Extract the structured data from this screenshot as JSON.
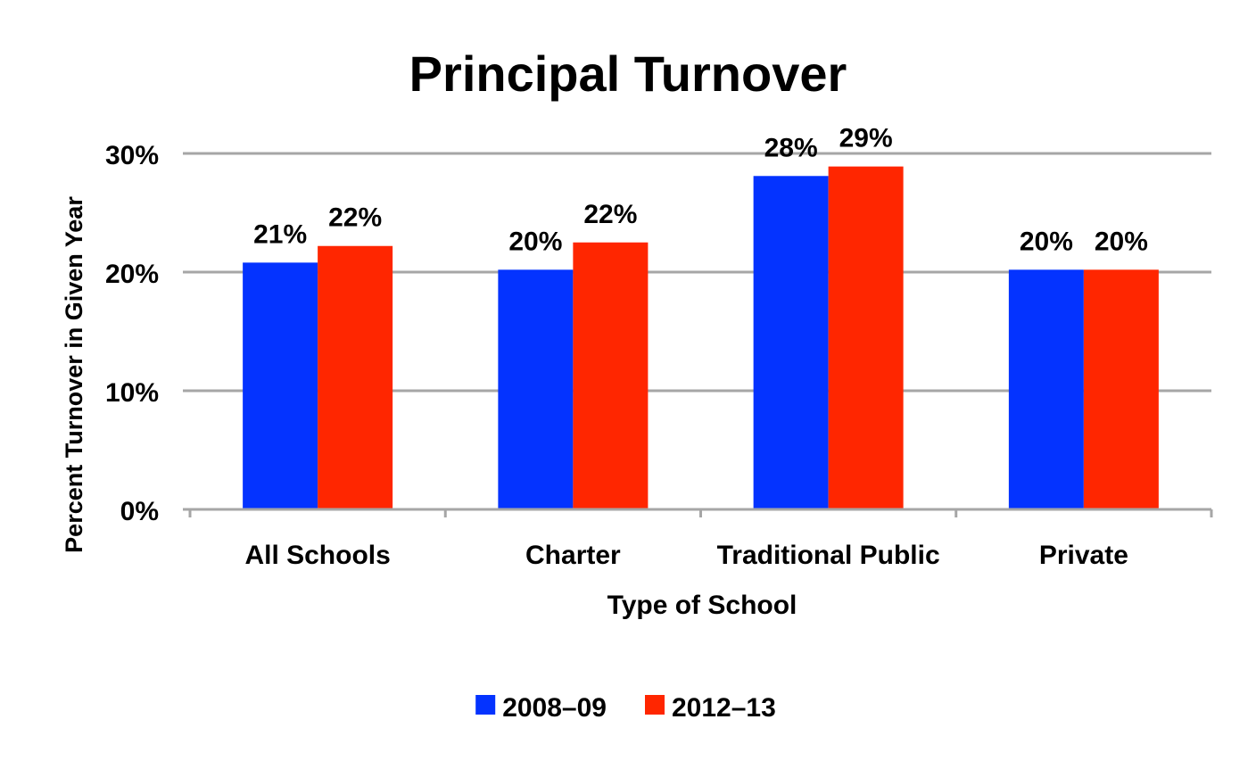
{
  "chart_data": {
    "type": "bar",
    "title": "Principal Turnover",
    "xlabel": "Type of School",
    "ylabel": "Percent Turnover in Given Year",
    "categories": [
      "All Schools",
      "Charter",
      "Traditional Public",
      "Private"
    ],
    "series": [
      {
        "name": "2008–09",
        "color": "#0433FF",
        "values": [
          20.8,
          20.2,
          28.1,
          20.2
        ],
        "labels": [
          "21%",
          "20%",
          "28%",
          "20%"
        ]
      },
      {
        "name": "2012–13",
        "color": "#FF2600",
        "values": [
          22.2,
          22.5,
          28.9,
          20.2
        ],
        "labels": [
          "22%",
          "22%",
          "29%",
          "20%"
        ]
      }
    ],
    "ylim": [
      0,
      30
    ],
    "yticks": [
      0,
      10,
      20,
      30
    ],
    "ytick_labels": [
      "0%",
      "10%",
      "20%",
      "30%"
    ],
    "grid": true,
    "gridline_color": "#A6A6A6",
    "legend_position": "bottom"
  }
}
